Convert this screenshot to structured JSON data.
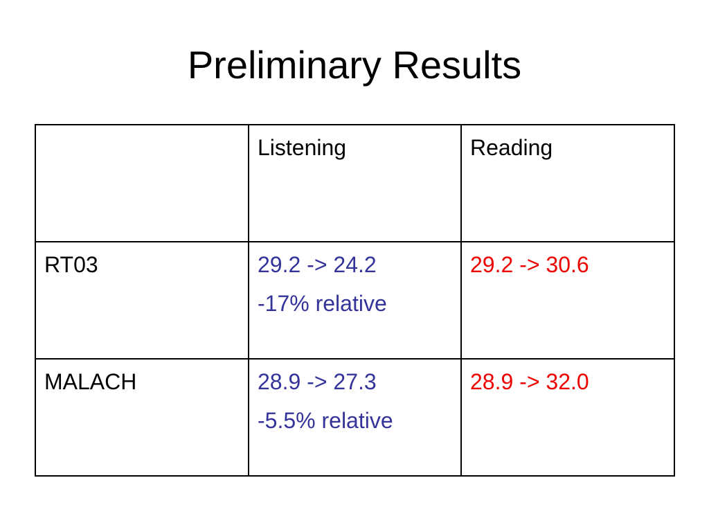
{
  "slide": {
    "title": "Preliminary Results"
  },
  "table": {
    "headers": [
      "",
      "Listening",
      "Reading"
    ],
    "rows": [
      {
        "label": "RT03",
        "listening": [
          "29.2 -> 24.2",
          "-17% relative"
        ],
        "reading": [
          "29.2 -> 30.6"
        ]
      },
      {
        "label": "MALACH",
        "listening": [
          "28.9 -> 27.3",
          "-5.5% relative"
        ],
        "reading": [
          "28.9 -> 32.0"
        ]
      }
    ]
  },
  "colors": {
    "listening_text": "#333399",
    "reading_text": "#ee0000"
  }
}
